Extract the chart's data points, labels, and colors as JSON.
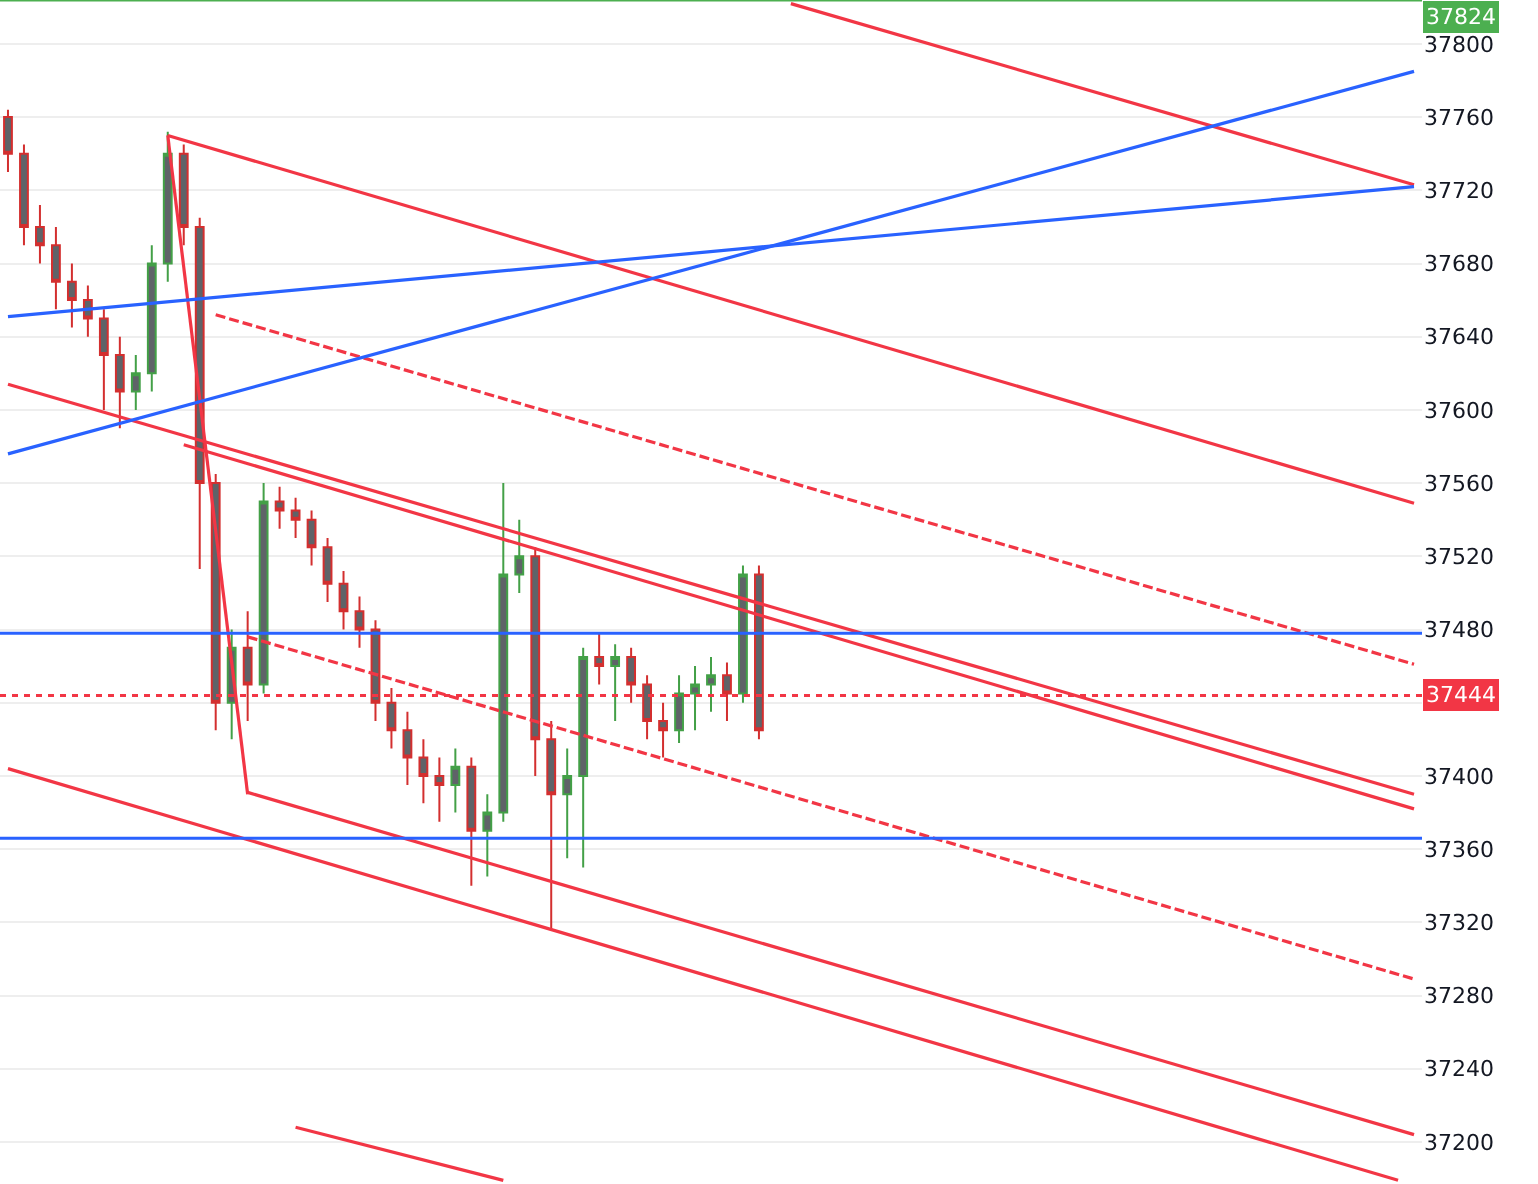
{
  "chart_data": {
    "type": "candlestick",
    "categories": [
      null,
      null,
      null,
      null,
      null,
      null,
      null,
      null,
      null,
      null,
      null,
      null,
      null,
      null,
      null,
      null,
      null,
      null,
      null,
      null,
      null,
      null,
      null,
      null,
      null,
      null,
      null,
      null,
      null,
      null,
      null,
      null,
      null,
      null,
      null,
      null,
      null,
      null,
      null,
      null,
      null,
      null,
      null,
      null,
      null,
      null,
      null,
      null,
      null,
      null,
      null,
      null,
      null,
      null,
      null,
      null,
      null,
      null,
      null,
      null,
      null,
      null,
      null,
      null,
      null,
      null,
      null,
      null,
      null,
      null,
      null,
      null,
      null,
      null,
      null,
      null,
      null,
      null,
      null,
      null,
      null,
      null,
      null,
      null,
      null,
      null,
      null,
      null,
      null
    ],
    "ylim": [
      37177,
      37824
    ],
    "yticks": [
      37200,
      37240,
      37280,
      37320,
      37360,
      37400,
      {
        "value": 37440,
        "label": null
      },
      37480,
      37520,
      37560,
      37600,
      37640,
      37680,
      37720,
      37760,
      37800
    ],
    "tick_labels": "y",
    "grid": "y",
    "series": [
      {
        "color": "#5f6368",
        "colors": [
          "#d32f2f",
          "#d32f2f",
          "#d32f2f",
          "#d32f2f",
          "#d32f2f",
          "#d32f2f",
          "#d32f2f",
          "#d32f2f",
          "#43a047",
          "#43a047",
          "#43a047",
          "#d32f2f",
          "#d32f2f",
          "#d32f2f",
          "#43a047",
          "#d32f2f",
          "#43a047",
          "#d32f2f",
          "#d32f2f",
          "#d32f2f",
          "#d32f2f",
          "#d32f2f",
          "#d32f2f",
          "#d32f2f",
          "#d32f2f",
          "#d32f2f",
          "#d32f2f",
          "#d32f2f",
          "#43a047",
          "#d32f2f",
          "#43a047",
          "#43a047",
          "#43a047",
          "#d32f2f",
          "#d32f2f",
          "#43a047",
          "#43a047",
          "#d32f2f",
          "#43a047",
          "#d32f2f",
          "#d32f2f",
          "#d32f2f",
          "#43a047",
          "#43a047",
          "#43a047",
          "#d32f2f",
          "#43a047",
          "#d32f2f",
          null,
          null,
          null,
          null,
          null,
          null,
          null,
          null,
          null,
          null,
          null,
          null,
          null,
          null,
          null,
          null,
          null,
          null,
          null,
          null,
          null,
          null,
          null,
          null,
          null,
          null,
          null,
          null,
          null,
          null,
          null,
          null,
          null,
          null,
          null,
          null,
          null,
          null,
          null,
          null,
          null
        ],
        "ohlc": [
          [
            37760,
            37764,
            37730,
            37740
          ],
          [
            37740,
            37745,
            37690,
            37700
          ],
          [
            37700,
            37712,
            37680,
            37690
          ],
          [
            37690,
            37700,
            37655,
            37670
          ],
          [
            37670,
            37680,
            37645,
            37660
          ],
          [
            37660,
            37668,
            37640,
            37650
          ],
          [
            37650,
            37655,
            37600,
            37630
          ],
          [
            37630,
            37640,
            37590,
            37610
          ],
          [
            37610,
            37630,
            37600,
            37620
          ],
          [
            37620,
            37690,
            37610,
            37680
          ],
          [
            37680,
            37752,
            37670,
            37740
          ],
          [
            37740,
            37745,
            37690,
            37700
          ],
          [
            37700,
            37705,
            37513,
            37560
          ],
          [
            37560,
            37565,
            37425,
            37440
          ],
          [
            37440,
            37480,
            37420,
            37470
          ],
          [
            37470,
            37490,
            37430,
            37450
          ],
          [
            37450,
            37560,
            37445,
            37550
          ],
          [
            37550,
            37558,
            37535,
            37545
          ],
          [
            37545,
            37552,
            37530,
            37540
          ],
          [
            37540,
            37545,
            37515,
            37525
          ],
          [
            37525,
            37530,
            37495,
            37505
          ],
          [
            37505,
            37512,
            37480,
            37490
          ],
          [
            37490,
            37498,
            37470,
            37480
          ],
          [
            37480,
            37485,
            37430,
            37440
          ],
          [
            37440,
            37448,
            37415,
            37425
          ],
          [
            37425,
            37435,
            37395,
            37410
          ],
          [
            37410,
            37420,
            37385,
            37400
          ],
          [
            37400,
            37410,
            37375,
            37395
          ],
          [
            37395,
            37415,
            37380,
            37405
          ],
          [
            37405,
            37410,
            37340,
            37370
          ],
          [
            37370,
            37390,
            37345,
            37380
          ],
          [
            37380,
            37560,
            37375,
            37510
          ],
          [
            37510,
            37540,
            37500,
            37520
          ],
          [
            37520,
            37525,
            37400,
            37420
          ],
          [
            37420,
            37430,
            37316,
            37390
          ],
          [
            37390,
            37415,
            37355,
            37400
          ],
          [
            37400,
            37470,
            37350,
            37465
          ],
          [
            37465,
            37478,
            37450,
            37460
          ],
          [
            37460,
            37472,
            37430,
            37465
          ],
          [
            37465,
            37470,
            37440,
            37450
          ],
          [
            37450,
            37455,
            37420,
            37430
          ],
          [
            37430,
            37440,
            37410,
            37425
          ],
          [
            37425,
            37455,
            37418,
            37445
          ],
          [
            37445,
            37460,
            37425,
            37450
          ],
          [
            37450,
            37465,
            37435,
            37455
          ],
          [
            37455,
            37462,
            37430,
            37445
          ],
          [
            37445,
            37515,
            37440,
            37510
          ],
          [
            37510,
            37515,
            37420,
            37425
          ],
          null,
          null,
          null,
          null,
          null,
          null,
          null,
          null,
          null,
          null,
          null,
          null,
          null,
          null,
          null,
          null,
          null,
          null,
          null,
          null,
          null,
          null,
          null,
          null,
          null,
          null,
          null,
          null,
          null,
          null,
          null,
          null,
          null,
          null,
          null,
          null,
          null,
          null,
          null,
          null,
          null
        ]
      },
      {
        "type": "line",
        "color": "#f23645",
        "values": [
          null,
          null,
          null,
          null,
          null,
          null,
          null,
          null,
          null,
          null,
          null,
          null,
          null,
          null,
          null,
          null,
          null,
          null,
          null,
          null,
          null,
          null,
          null,
          null,
          null,
          null,
          null,
          null,
          null,
          null,
          null,
          null,
          null,
          null,
          null,
          null,
          null,
          null,
          null,
          null,
          null,
          null,
          null,
          null,
          null,
          null,
          null,
          null,
          null,
          37822,
          null,
          null,
          null,
          null,
          null,
          null,
          null,
          null,
          null,
          null,
          null,
          null,
          null,
          null,
          null,
          null,
          null,
          null,
          null,
          null,
          null,
          null,
          null,
          null,
          null,
          null,
          null,
          null,
          null,
          null,
          null,
          null,
          null,
          null,
          null,
          null,
          null,
          null,
          37723
        ]
      },
      {
        "type": "line",
        "color": "#f23645",
        "values": [
          null,
          null,
          null,
          null,
          null,
          null,
          null,
          null,
          null,
          null,
          37750,
          null,
          null,
          null,
          null,
          null,
          null,
          null,
          null,
          null,
          null,
          null,
          null,
          null,
          null,
          null,
          null,
          null,
          null,
          null,
          null,
          null,
          null,
          null,
          null,
          null,
          null,
          null,
          null,
          null,
          null,
          null,
          null,
          null,
          null,
          null,
          null,
          null,
          null,
          null,
          null,
          null,
          null,
          null,
          null,
          null,
          null,
          null,
          null,
          null,
          null,
          null,
          null,
          null,
          null,
          null,
          null,
          null,
          null,
          null,
          null,
          null,
          null,
          null,
          null,
          null,
          null,
          null,
          null,
          null,
          null,
          null,
          null,
          null,
          null,
          null,
          null,
          null,
          37549
        ]
      },
      {
        "type": "line",
        "color": "#f23645",
        "values": [
          37614,
          null,
          null,
          null,
          null,
          null,
          null,
          null,
          null,
          null,
          null,
          null,
          null,
          null,
          null,
          null,
          null,
          null,
          null,
          null,
          null,
          null,
          null,
          null,
          null,
          null,
          null,
          null,
          null,
          null,
          null,
          null,
          null,
          null,
          null,
          null,
          null,
          null,
          null,
          null,
          null,
          null,
          null,
          null,
          null,
          null,
          null,
          null,
          null,
          null,
          null,
          null,
          null,
          null,
          null,
          null,
          null,
          null,
          null,
          null,
          null,
          null,
          null,
          null,
          null,
          null,
          null,
          null,
          null,
          null,
          null,
          null,
          null,
          null,
          null,
          null,
          null,
          null,
          null,
          null,
          null,
          null,
          null,
          null,
          null,
          null,
          null,
          null,
          37390
        ]
      },
      {
        "type": "line",
        "color": "#f23645",
        "values": [
          null,
          null,
          null,
          null,
          null,
          null,
          null,
          null,
          null,
          null,
          null,
          37581,
          null,
          null,
          null,
          null,
          null,
          null,
          null,
          null,
          null,
          null,
          null,
          null,
          null,
          null,
          null,
          null,
          null,
          null,
          null,
          null,
          null,
          null,
          null,
          null,
          null,
          null,
          null,
          null,
          null,
          null,
          null,
          null,
          null,
          null,
          null,
          null,
          null,
          null,
          null,
          null,
          null,
          null,
          null,
          null,
          null,
          null,
          null,
          null,
          null,
          null,
          null,
          null,
          null,
          null,
          null,
          null,
          null,
          null,
          null,
          null,
          null,
          null,
          null,
          null,
          null,
          null,
          null,
          null,
          null,
          null,
          null,
          null,
          null,
          null,
          null,
          null,
          37382
        ]
      },
      {
        "type": "line",
        "color": "#f23645",
        "line_style": "dashed",
        "values": [
          null,
          null,
          null,
          null,
          null,
          null,
          null,
          null,
          null,
          null,
          null,
          null,
          null,
          37652,
          null,
          null,
          null,
          null,
          null,
          null,
          null,
          null,
          null,
          null,
          null,
          null,
          null,
          null,
          null,
          null,
          null,
          null,
          null,
          null,
          null,
          null,
          null,
          null,
          null,
          null,
          null,
          null,
          null,
          null,
          null,
          null,
          null,
          null,
          null,
          null,
          null,
          null,
          null,
          null,
          null,
          null,
          null,
          null,
          null,
          null,
          null,
          null,
          null,
          null,
          null,
          null,
          null,
          null,
          null,
          null,
          null,
          null,
          null,
          null,
          null,
          null,
          null,
          null,
          null,
          null,
          null,
          null,
          null,
          null,
          null,
          null,
          null,
          null,
          37461
        ]
      },
      {
        "type": "line",
        "color": "#f23645",
        "line_style": "dashed",
        "values": [
          null,
          null,
          null,
          null,
          null,
          null,
          null,
          null,
          null,
          null,
          null,
          null,
          null,
          null,
          null,
          37476,
          null,
          null,
          null,
          null,
          null,
          null,
          null,
          null,
          null,
          null,
          null,
          null,
          null,
          null,
          null,
          null,
          null,
          null,
          null,
          null,
          null,
          null,
          null,
          null,
          null,
          null,
          null,
          null,
          null,
          null,
          null,
          null,
          null,
          null,
          null,
          null,
          null,
          null,
          null,
          null,
          null,
          null,
          null,
          null,
          null,
          null,
          null,
          null,
          null,
          null,
          null,
          null,
          null,
          null,
          null,
          null,
          null,
          null,
          null,
          null,
          null,
          null,
          null,
          null,
          null,
          null,
          null,
          null,
          null,
          null,
          null,
          null,
          37289
        ]
      },
      {
        "type": "line",
        "color": "#f23645",
        "values": [
          37404,
          null,
          null,
          null,
          null,
          null,
          null,
          null,
          null,
          null,
          null,
          null,
          null,
          null,
          null,
          null,
          null,
          null,
          null,
          null,
          null,
          null,
          null,
          null,
          null,
          null,
          null,
          null,
          null,
          null,
          null,
          null,
          null,
          null,
          null,
          null,
          null,
          null,
          null,
          null,
          null,
          null,
          null,
          null,
          null,
          null,
          null,
          null,
          null,
          null,
          null,
          null,
          null,
          null,
          null,
          null,
          null,
          null,
          null,
          null,
          null,
          null,
          null,
          null,
          null,
          null,
          null,
          null,
          null,
          null,
          null,
          null,
          null,
          null,
          null,
          null,
          null,
          null,
          null,
          null,
          null,
          null,
          null,
          null,
          null,
          null,
          null,
          37179,
          null
        ]
      },
      {
        "type": "line",
        "color": "#f23645",
        "values": [
          null,
          null,
          null,
          null,
          null,
          null,
          null,
          null,
          null,
          null,
          null,
          null,
          null,
          null,
          null,
          37391,
          null,
          null,
          null,
          null,
          null,
          null,
          null,
          null,
          null,
          null,
          null,
          null,
          null,
          null,
          null,
          null,
          null,
          null,
          null,
          null,
          null,
          null,
          null,
          null,
          null,
          null,
          null,
          null,
          null,
          null,
          null,
          null,
          null,
          null,
          null,
          null,
          null,
          null,
          null,
          null,
          null,
          null,
          null,
          null,
          null,
          null,
          null,
          null,
          null,
          null,
          null,
          null,
          null,
          null,
          null,
          null,
          null,
          null,
          null,
          null,
          null,
          null,
          null,
          null,
          null,
          null,
          null,
          null,
          null,
          null,
          null,
          null,
          37204
        ]
      },
      {
        "type": "line",
        "color": "#f23645",
        "values": [
          null,
          null,
          null,
          null,
          null,
          null,
          null,
          null,
          null,
          null,
          null,
          null,
          null,
          null,
          null,
          null,
          null,
          null,
          37208,
          null,
          null,
          null,
          null,
          null,
          null,
          null,
          null,
          null,
          null,
          null,
          null,
          37179,
          null,
          null,
          null,
          null,
          null,
          null,
          null,
          null,
          null,
          null,
          null,
          null,
          null,
          null,
          null,
          null,
          null,
          null,
          null,
          null,
          null,
          null,
          null,
          null,
          null,
          null,
          null,
          null,
          null,
          null,
          null,
          null,
          null,
          null,
          null,
          null,
          null,
          null,
          null,
          null,
          null,
          null,
          null,
          null,
          null,
          null,
          null,
          null,
          null,
          null,
          null,
          null,
          null,
          null,
          null,
          null,
          null
        ]
      },
      {
        "type": "line",
        "color": "#f23645",
        "values": [
          null,
          null,
          null,
          null,
          null,
          null,
          null,
          null,
          null,
          null,
          37750,
          null,
          null,
          null,
          null,
          37390,
          null,
          null,
          null,
          null,
          null,
          null,
          null,
          null,
          null,
          null,
          null,
          null,
          null,
          null,
          null,
          null,
          null,
          null,
          null,
          null,
          null,
          null,
          null,
          null,
          null,
          null,
          null,
          null,
          null,
          null,
          null,
          null,
          null,
          null,
          null,
          null,
          null,
          null,
          null,
          null,
          null,
          null,
          null,
          null,
          null,
          null,
          null,
          null,
          null,
          null,
          null,
          null,
          null,
          null,
          null,
          null,
          null,
          null,
          null,
          null,
          null,
          null,
          null,
          null,
          null,
          null,
          null,
          null,
          null,
          null,
          null,
          null,
          null
        ]
      },
      {
        "type": "line",
        "color": "#2962ff",
        "values": [
          37576,
          null,
          null,
          null,
          null,
          null,
          null,
          null,
          null,
          null,
          null,
          null,
          null,
          null,
          null,
          null,
          null,
          null,
          null,
          null,
          null,
          null,
          null,
          null,
          null,
          null,
          null,
          null,
          null,
          null,
          null,
          null,
          null,
          null,
          null,
          null,
          null,
          null,
          null,
          null,
          null,
          null,
          null,
          null,
          null,
          null,
          null,
          null,
          null,
          null,
          null,
          null,
          null,
          null,
          null,
          null,
          null,
          null,
          null,
          null,
          null,
          null,
          null,
          null,
          null,
          null,
          null,
          null,
          null,
          null,
          null,
          null,
          null,
          null,
          null,
          null,
          null,
          null,
          null,
          null,
          null,
          null,
          null,
          null,
          null,
          null,
          null,
          null,
          37785
        ]
      },
      {
        "type": "line",
        "color": "#2962ff",
        "values": [
          37651,
          null,
          null,
          null,
          null,
          null,
          null,
          null,
          null,
          null,
          null,
          null,
          null,
          null,
          null,
          null,
          null,
          null,
          null,
          null,
          null,
          null,
          null,
          null,
          null,
          null,
          null,
          null,
          null,
          null,
          null,
          null,
          null,
          null,
          null,
          null,
          null,
          null,
          null,
          null,
          null,
          null,
          null,
          null,
          null,
          null,
          null,
          null,
          null,
          null,
          null,
          null,
          null,
          null,
          null,
          null,
          null,
          null,
          null,
          null,
          null,
          null,
          null,
          null,
          null,
          null,
          null,
          null,
          null,
          null,
          null,
          null,
          null,
          null,
          null,
          null,
          null,
          null,
          null,
          null,
          null,
          null,
          null,
          null,
          null,
          null,
          null,
          null,
          37722
        ]
      }
    ],
    "ref_lines": [
      {
        "axis": "y",
        "value": 37478,
        "color": "#2962ff",
        "line_style": "solid"
      },
      {
        "axis": "y",
        "value": 37366,
        "color": "#2962ff",
        "line_style": "solid"
      },
      {
        "axis": "y",
        "value": 37444,
        "label": "37444",
        "color": "#f23645",
        "line_style": "dotted"
      },
      {
        "axis": "y",
        "value": 37824,
        "label": "37824",
        "color": "#4caf50",
        "line_style": "solid"
      }
    ]
  }
}
